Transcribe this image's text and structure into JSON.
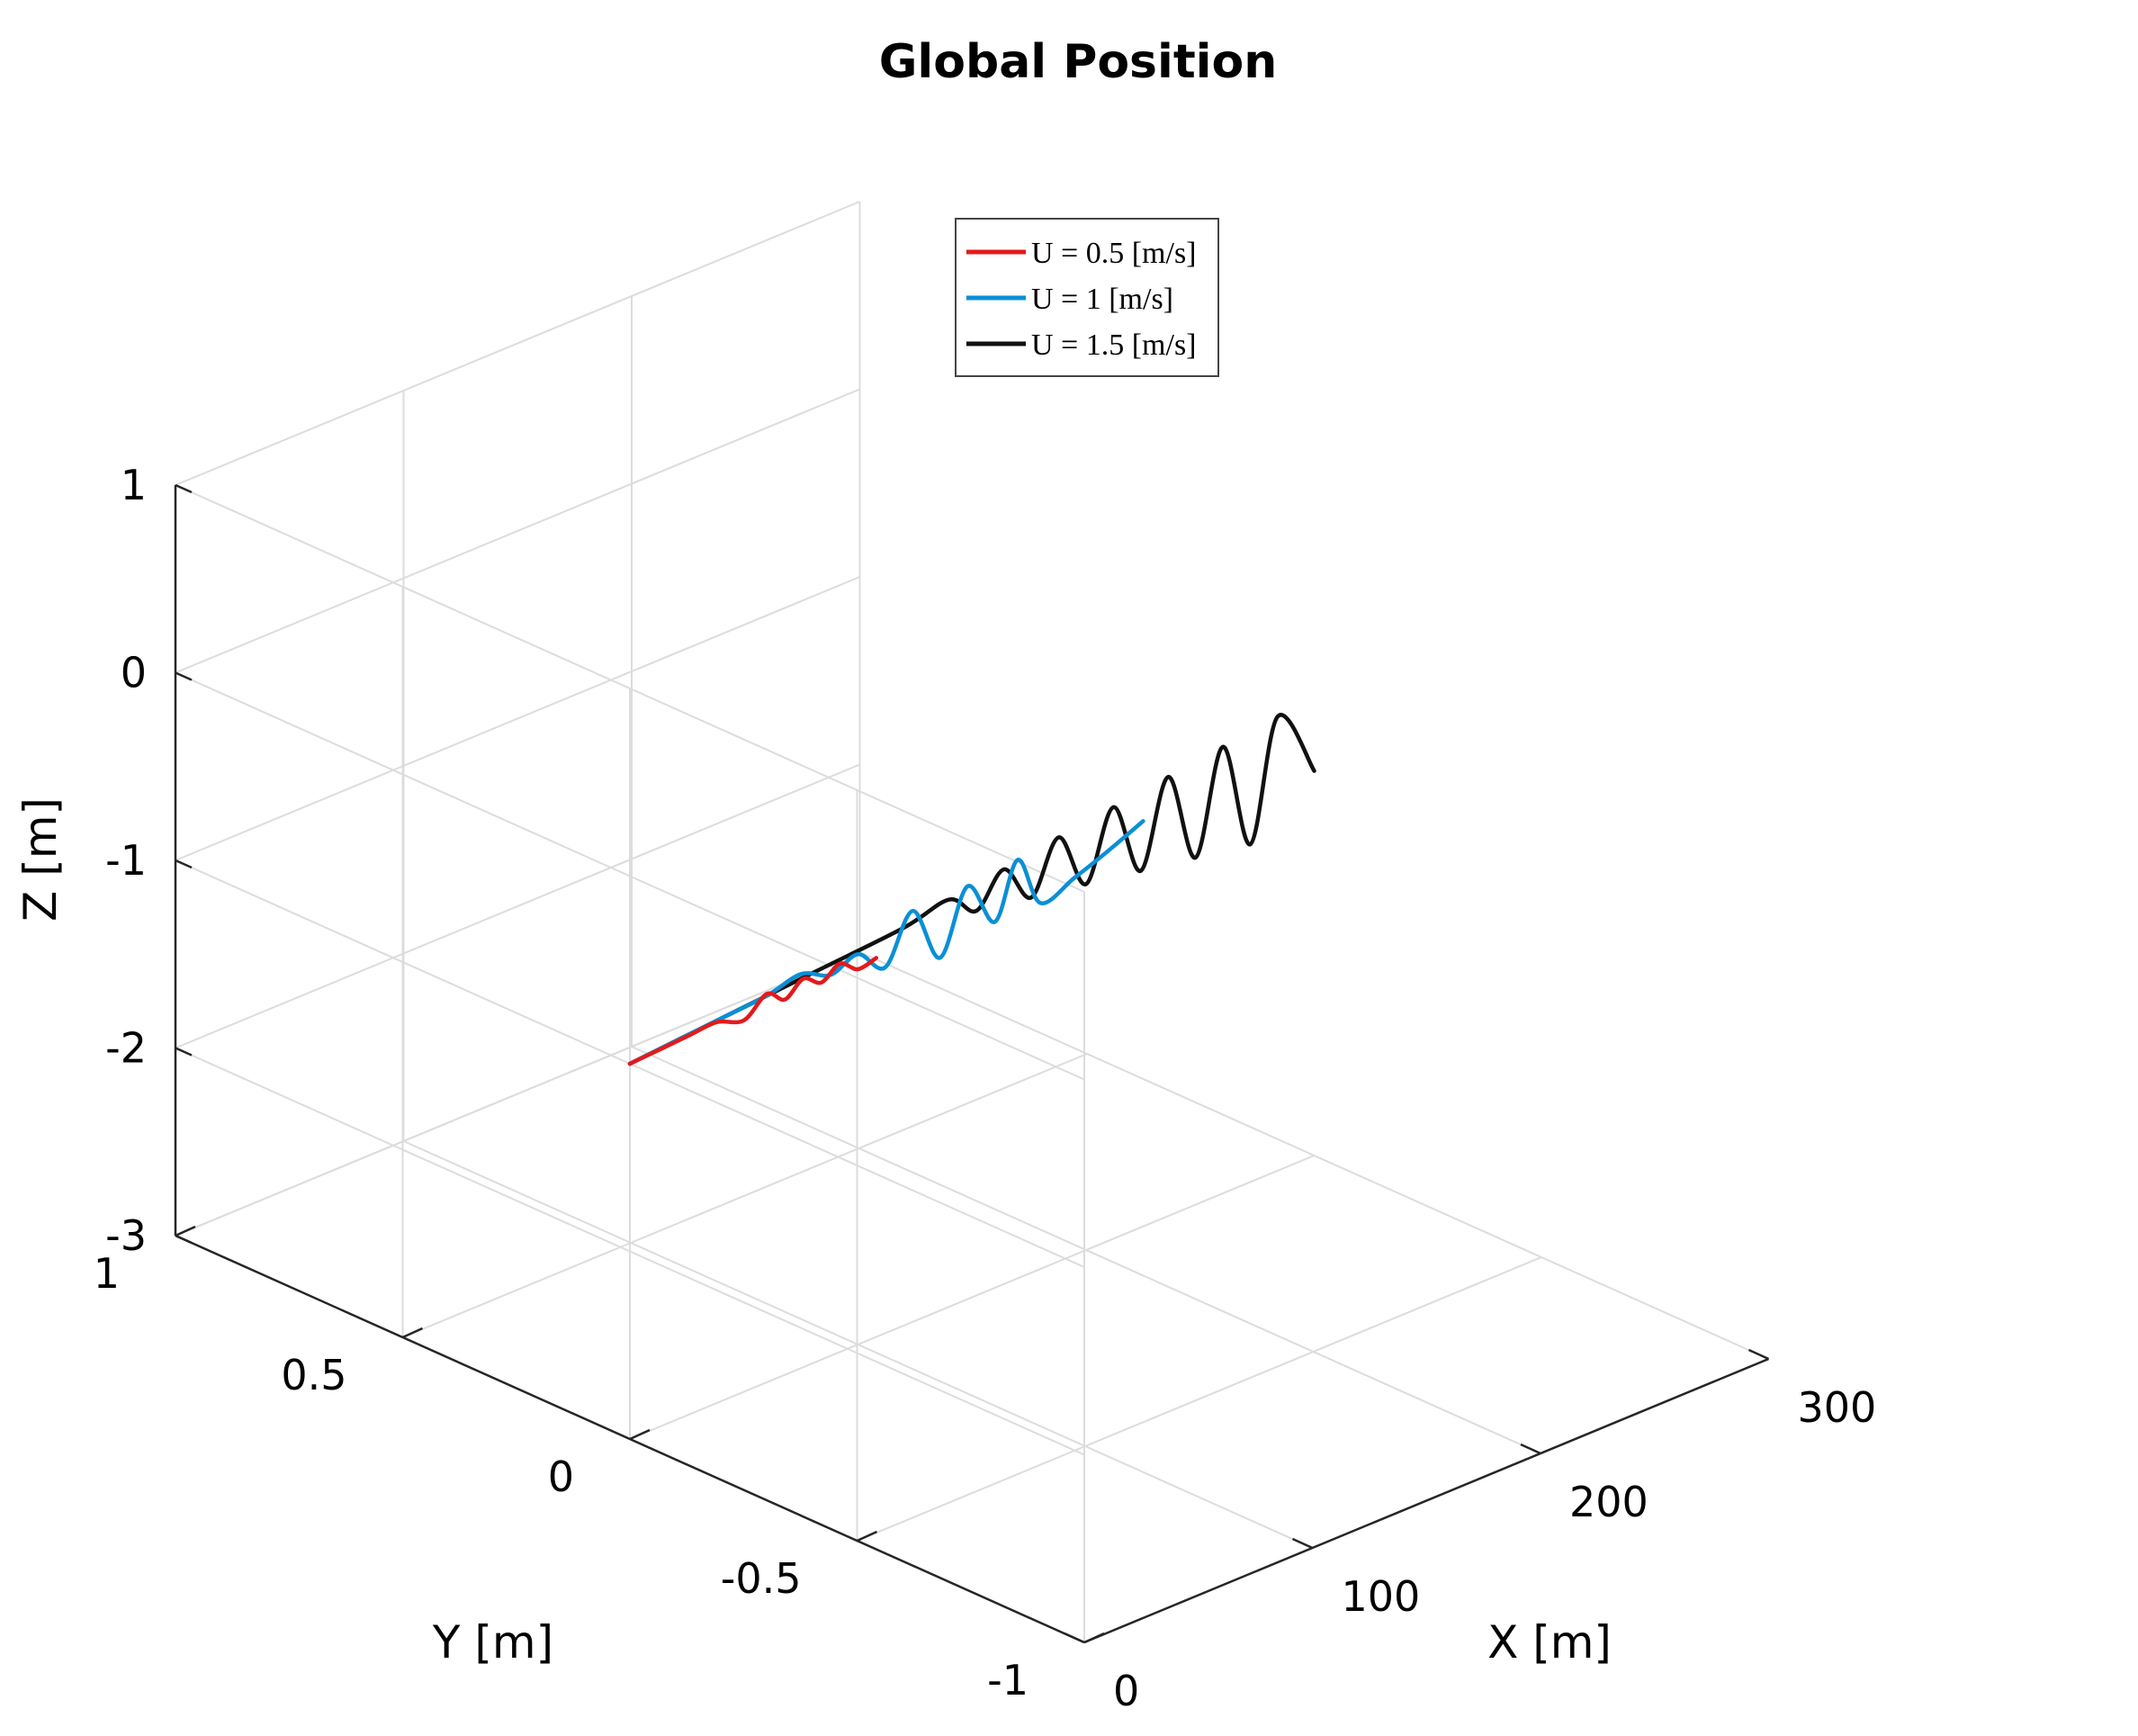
{
  "chart_data": {
    "type": "line",
    "title": "Global Position",
    "xlabel": "X  [m]",
    "ylabel": "Y  [m]",
    "zlabel": "Z  [m]",
    "xlim": [
      0,
      300
    ],
    "ylim": [
      -1,
      1
    ],
    "zlim": [
      -3,
      1
    ],
    "xticks": [
      "0",
      "100",
      "200",
      "300"
    ],
    "yticks": [
      "1",
      "0.5",
      "0",
      "-0.5",
      "-1"
    ],
    "zticks": [
      "1",
      "0",
      "-1",
      "-2",
      "-3"
    ],
    "grid": true,
    "legend_position": "top-center",
    "series": [
      {
        "name": "U = 0.5 [m/s]",
        "color": "#e31a1c",
        "x": [
          0,
          13,
          26,
          38,
          50,
          60,
          68,
          76,
          84,
          92,
          100,
          108
        ],
        "y": [
          0,
          0,
          0,
          0,
          0,
          0,
          0,
          0,
          0,
          0,
          0,
          0
        ],
        "z": [
          -1.0,
          -0.99,
          -0.98,
          -0.97,
          -1.02,
          -0.93,
          -1.0,
          -0.93,
          -0.99,
          -0.93,
          -1.0,
          -0.98
        ]
      },
      {
        "name": "U = 1    [m/s]",
        "color": "#0a8fd6",
        "x": [
          0,
          20,
          40,
          60,
          75,
          88,
          100,
          112,
          124,
          136,
          148,
          160,
          170,
          180,
          195,
          210,
          225
        ],
        "y": [
          0,
          0,
          0,
          0,
          0,
          0,
          0,
          0,
          0,
          0,
          0,
          0,
          0,
          0,
          0,
          0,
          0
        ],
        "z": [
          -1.0,
          -0.98,
          -0.96,
          -0.94,
          -0.9,
          -0.97,
          -0.92,
          -1.05,
          -0.81,
          -1.12,
          -0.8,
          -1.05,
          -0.77,
          -1.05,
          -0.99,
          -0.92,
          -0.84
        ]
      },
      {
        "name": "U = 1.5 [m/s]",
        "color": "#111111",
        "x": [
          0,
          40,
          80,
          120,
          140,
          152,
          164,
          176,
          188,
          200,
          212,
          224,
          236,
          248,
          260,
          272,
          284,
          300
        ],
        "y": [
          0,
          0,
          0,
          0,
          0,
          0,
          0,
          0,
          0,
          0,
          0,
          0,
          0,
          0,
          0,
          0,
          0,
          0
        ],
        "z": [
          -1.0,
          -0.96,
          -0.92,
          -0.88,
          -0.83,
          -0.95,
          -0.79,
          -1.0,
          -0.74,
          -1.05,
          -0.7,
          -1.1,
          -0.66,
          -1.15,
          -0.62,
          -1.2,
          -0.58,
          -0.95
        ]
      }
    ]
  }
}
